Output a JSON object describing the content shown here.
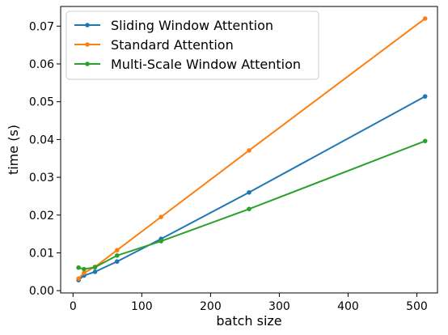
{
  "chart_data": {
    "type": "line",
    "xlabel": "batch size",
    "ylabel": "time (s)",
    "xlim": [
      -18,
      530
    ],
    "ylim": [
      -0.0006,
      0.0752
    ],
    "xticks": [
      0,
      100,
      200,
      300,
      400,
      500
    ],
    "yticks": [
      0.0,
      0.01,
      0.02,
      0.03,
      0.04,
      0.05,
      0.06,
      0.07
    ],
    "xtick_labels": [
      "0",
      "100",
      "200",
      "300",
      "400",
      "500"
    ],
    "ytick_labels": [
      "0.00",
      "0.01",
      "0.02",
      "0.03",
      "0.04",
      "0.05",
      "0.06",
      "0.07"
    ],
    "grid": false,
    "legend_position": "top-left",
    "series": [
      {
        "name": "Sliding Window Attention",
        "color": "#1f77b4",
        "x": [
          8,
          16,
          32,
          64,
          128,
          256,
          512
        ],
        "y": [
          0.0028,
          0.004,
          0.005,
          0.0077,
          0.0137,
          0.026,
          0.0514
        ]
      },
      {
        "name": "Standard Attention",
        "color": "#ff7f0e",
        "x": [
          8,
          16,
          32,
          64,
          128,
          256,
          512
        ],
        "y": [
          0.0032,
          0.0047,
          0.0063,
          0.0107,
          0.0195,
          0.0371,
          0.072
        ]
      },
      {
        "name": "Multi-Scale Window Attention",
        "color": "#2ca02c",
        "x": [
          8,
          16,
          32,
          64,
          128,
          256,
          512
        ],
        "y": [
          0.0061,
          0.0057,
          0.0062,
          0.0093,
          0.0131,
          0.0216,
          0.0396
        ]
      }
    ]
  }
}
